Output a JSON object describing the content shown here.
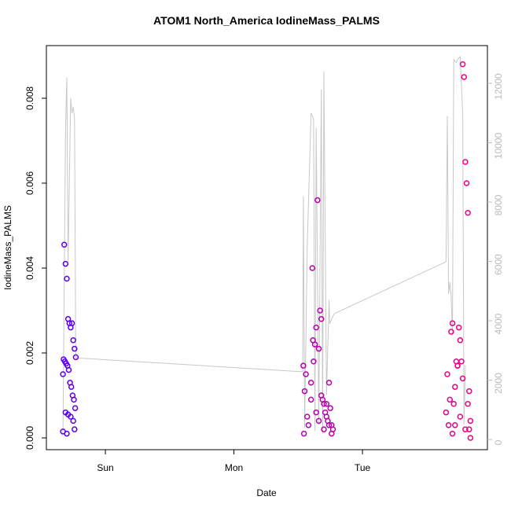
{
  "chart_data": {
    "type": "scatter",
    "title": "ATOM1 North_America IodineMass_PALMS",
    "x_label": "Date",
    "y_label": "IodineMass_PALMS",
    "xlim": [
      -0.459,
      2.972
    ],
    "xticks": [
      {
        "value": 0,
        "label": "Sun"
      },
      {
        "value": 1,
        "label": "Mon"
      },
      {
        "value": 2,
        "label": "Tue"
      }
    ],
    "ylim": [
      -0.000278,
      0.00924
    ],
    "yticks": [
      {
        "value": 0,
        "label": "0.000"
      },
      0.002,
      0.004,
      0.006,
      0.008
    ],
    "y2lim": [
      -344,
      13272
    ],
    "y2ticks": [
      0,
      2000,
      4000,
      6000,
      8000,
      10000,
      12000
    ],
    "color_gradient": [
      "#5a00f0",
      "#f00085"
    ],
    "points": {
      "x": [
        -0.33,
        -0.32,
        -0.31,
        -0.3,
        -0.29,
        -0.28,
        -0.27,
        -0.26,
        -0.25,
        -0.24,
        -0.23,
        -0.325,
        -0.315,
        -0.305,
        -0.295,
        -0.285,
        -0.275,
        -0.265,
        -0.255,
        -0.245,
        -0.235,
        -0.31,
        -0.29,
        -0.27,
        -0.25,
        -0.24,
        -0.33,
        -0.3,
        1.54,
        1.55,
        1.56,
        1.57,
        1.58,
        1.6,
        1.61,
        1.615,
        1.62,
        1.63,
        1.64,
        1.65,
        1.66,
        1.67,
        1.68,
        1.69,
        1.7,
        1.71,
        1.72,
        1.73,
        1.74,
        1.75,
        1.76,
        1.77,
        1.545,
        1.6,
        1.64,
        1.66,
        1.68,
        1.7,
        1.72,
        1.74,
        1.76,
        2.65,
        2.66,
        2.67,
        2.68,
        2.69,
        2.7,
        2.71,
        2.72,
        2.73,
        2.74,
        2.75,
        2.76,
        2.77,
        2.78,
        2.79,
        2.8,
        2.81,
        2.82,
        2.83,
        2.84,
        2.7,
        2.72,
        2.74,
        2.76,
        2.78,
        2.8,
        2.82,
        2.83,
        2.84
      ],
      "values": [
        0.0015,
        0.00455,
        0.0041,
        0.00375,
        0.0028,
        0.0027,
        0.0026,
        0.0027,
        0.0023,
        0.0021,
        0.0019,
        0.00185,
        0.0018,
        0.00175,
        0.0017,
        0.0016,
        0.0013,
        0.0012,
        0.001,
        0.0009,
        0.0007,
        0.0006,
        0.00055,
        0.0005,
        0.0004,
        0.0002,
        0.00015,
        0.0001,
        0.0017,
        0.0011,
        0.0015,
        0.0005,
        0.0003,
        0.0013,
        0.004,
        0.0023,
        0.0018,
        0.0022,
        0.0026,
        0.0056,
        0.0021,
        0.003,
        0.0028,
        0.0009,
        0.0008,
        0.0006,
        0.0005,
        0.0004,
        0.0013,
        0.0007,
        0.0003,
        0.0002,
        0.0001,
        0.0009,
        0.0006,
        0.0004,
        0.001,
        0.0002,
        0.0008,
        0.0003,
        0.0001,
        0.0006,
        0.0015,
        0.0003,
        0.0009,
        0.0025,
        0.0027,
        0.0008,
        0.0012,
        0.0018,
        0.0017,
        0.0026,
        0.0023,
        0.0018,
        0.0088,
        0.0085,
        0.0065,
        0.006,
        0.0053,
        0.0011,
        0.0004,
        0.0001,
        0.0003,
        0.0017,
        0.0005,
        0.0014,
        0.0002,
        0.0008,
        0.0002,
        0.0
      ]
    },
    "line": {
      "axis": "y2",
      "color": "#c8c8c8",
      "x": [
        -0.34,
        -0.33,
        -0.31,
        -0.3,
        -0.29,
        -0.27,
        -0.26,
        -0.25,
        -0.24,
        -0.23,
        1.535,
        1.54,
        1.55,
        1.57,
        1.6,
        1.62,
        1.63,
        1.64,
        1.66,
        1.68,
        1.69,
        1.7,
        1.72,
        1.74,
        1.745,
        1.78,
        2.65,
        2.66,
        2.67,
        2.68,
        2.69,
        2.7,
        2.71,
        2.73,
        2.74,
        2.76,
        2.78,
        2.79,
        2.8
      ],
      "values": [
        100,
        300,
        10500,
        12200,
        6000,
        11500,
        11000,
        11200,
        10800,
        2750,
        2280,
        8200,
        400,
        6500,
        11000,
        10800,
        300,
        10500,
        500,
        11800,
        200,
        12400,
        1500,
        4700,
        3900,
        4240,
        5990,
        10900,
        4900,
        5300,
        4800,
        3500,
        12800,
        12700,
        12800,
        12900,
        11000,
        500,
        2500
      ]
    }
  }
}
